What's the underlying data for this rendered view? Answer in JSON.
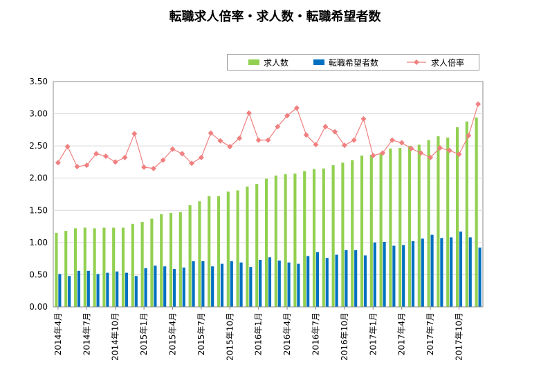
{
  "title": "転職求人倍率・求人数・転職希望者数",
  "legend": [
    {
      "label": "求人数",
      "color": "#92d050"
    },
    {
      "label": "転職希望者数",
      "color": "#0070c0"
    },
    {
      "label": "求人倍率",
      "color": "#f08080"
    }
  ],
  "chart_data": {
    "type": "bar",
    "title": "転職求人倍率・求人数・転職希望者数",
    "ylim": [
      0,
      3.5
    ],
    "y_ticks": [
      "0.00",
      "0.50",
      "1.00",
      "1.50",
      "2.00",
      "2.50",
      "3.00",
      "3.50"
    ],
    "grid": true,
    "legend_position": "top-right",
    "x_tick_labels": [
      {
        "index": 0,
        "label": "2014年4月"
      },
      {
        "index": 3,
        "label": "2014年7月"
      },
      {
        "index": 6,
        "label": "2014年10月"
      },
      {
        "index": 9,
        "label": "2015年1月"
      },
      {
        "index": 12,
        "label": "2015年4月"
      },
      {
        "index": 15,
        "label": "2015年7月"
      },
      {
        "index": 18,
        "label": "2015年10月"
      },
      {
        "index": 21,
        "label": "2016年1月"
      },
      {
        "index": 24,
        "label": "2016年4月"
      },
      {
        "index": 27,
        "label": "2016年7月"
      },
      {
        "index": 30,
        "label": "2016年10月"
      },
      {
        "index": 33,
        "label": "2017年1月"
      },
      {
        "index": 36,
        "label": "2017年4月"
      },
      {
        "index": 39,
        "label": "2017年7月"
      },
      {
        "index": 42,
        "label": "2017年10月"
      }
    ],
    "categories": [
      "2014年4月",
      "2014年5月",
      "2014年6月",
      "2014年7月",
      "2014年8月",
      "2014年9月",
      "2014年10月",
      "2014年11月",
      "2014年12月",
      "2015年1月",
      "2015年2月",
      "2015年3月",
      "2015年4月",
      "2015年5月",
      "2015年6月",
      "2015年7月",
      "2015年8月",
      "2015年9月",
      "2015年10月",
      "2015年11月",
      "2015年12月",
      "2016年1月",
      "2016年2月",
      "2016年3月",
      "2016年4月",
      "2016年5月",
      "2016年6月",
      "2016年7月",
      "2016年8月",
      "2016年9月",
      "2016年10月",
      "2016年11月",
      "2016年12月",
      "2017年1月",
      "2017年2月",
      "2017年3月",
      "2017年4月",
      "2017年5月",
      "2017年6月",
      "2017年7月",
      "2017年8月",
      "2017年9月",
      "2017年10月",
      "2017年11月",
      "2017年12月"
    ],
    "series": [
      {
        "name": "求人数",
        "type": "bar",
        "color": "#92d050",
        "values": [
          1.15,
          1.18,
          1.22,
          1.23,
          1.22,
          1.23,
          1.23,
          1.23,
          1.29,
          1.32,
          1.37,
          1.44,
          1.46,
          1.47,
          1.58,
          1.64,
          1.72,
          1.72,
          1.79,
          1.81,
          1.87,
          1.91,
          1.99,
          2.04,
          2.06,
          2.07,
          2.11,
          2.14,
          2.15,
          2.2,
          2.24,
          2.28,
          2.35,
          2.36,
          2.39,
          2.46,
          2.47,
          2.5,
          2.52,
          2.59,
          2.65,
          2.63,
          2.79,
          2.88,
          2.94
        ]
      },
      {
        "name": "転職希望者数",
        "type": "bar",
        "color": "#0070c0",
        "values": [
          0.51,
          0.48,
          0.56,
          0.56,
          0.51,
          0.53,
          0.55,
          0.53,
          0.48,
          0.6,
          0.64,
          0.63,
          0.59,
          0.61,
          0.71,
          0.71,
          0.63,
          0.67,
          0.71,
          0.69,
          0.62,
          0.73,
          0.77,
          0.72,
          0.69,
          0.67,
          0.79,
          0.85,
          0.76,
          0.81,
          0.88,
          0.88,
          0.8,
          1.0,
          1.01,
          0.95,
          0.96,
          1.02,
          1.06,
          1.12,
          1.07,
          1.08,
          1.17,
          1.08,
          0.92
        ]
      },
      {
        "name": "求人倍率",
        "type": "line",
        "color": "#f08080",
        "values": [
          2.24,
          2.49,
          2.18,
          2.2,
          2.38,
          2.34,
          2.25,
          2.32,
          2.69,
          2.17,
          2.15,
          2.28,
          2.45,
          2.38,
          2.23,
          2.32,
          2.7,
          2.58,
          2.49,
          2.62,
          3.01,
          2.59,
          2.59,
          2.8,
          2.97,
          3.09,
          2.67,
          2.52,
          2.8,
          2.72,
          2.51,
          2.59,
          2.92,
          2.35,
          2.39,
          2.59,
          2.55,
          2.46,
          2.39,
          2.32,
          2.47,
          2.43,
          2.37,
          2.66,
          3.15
        ]
      }
    ]
  }
}
